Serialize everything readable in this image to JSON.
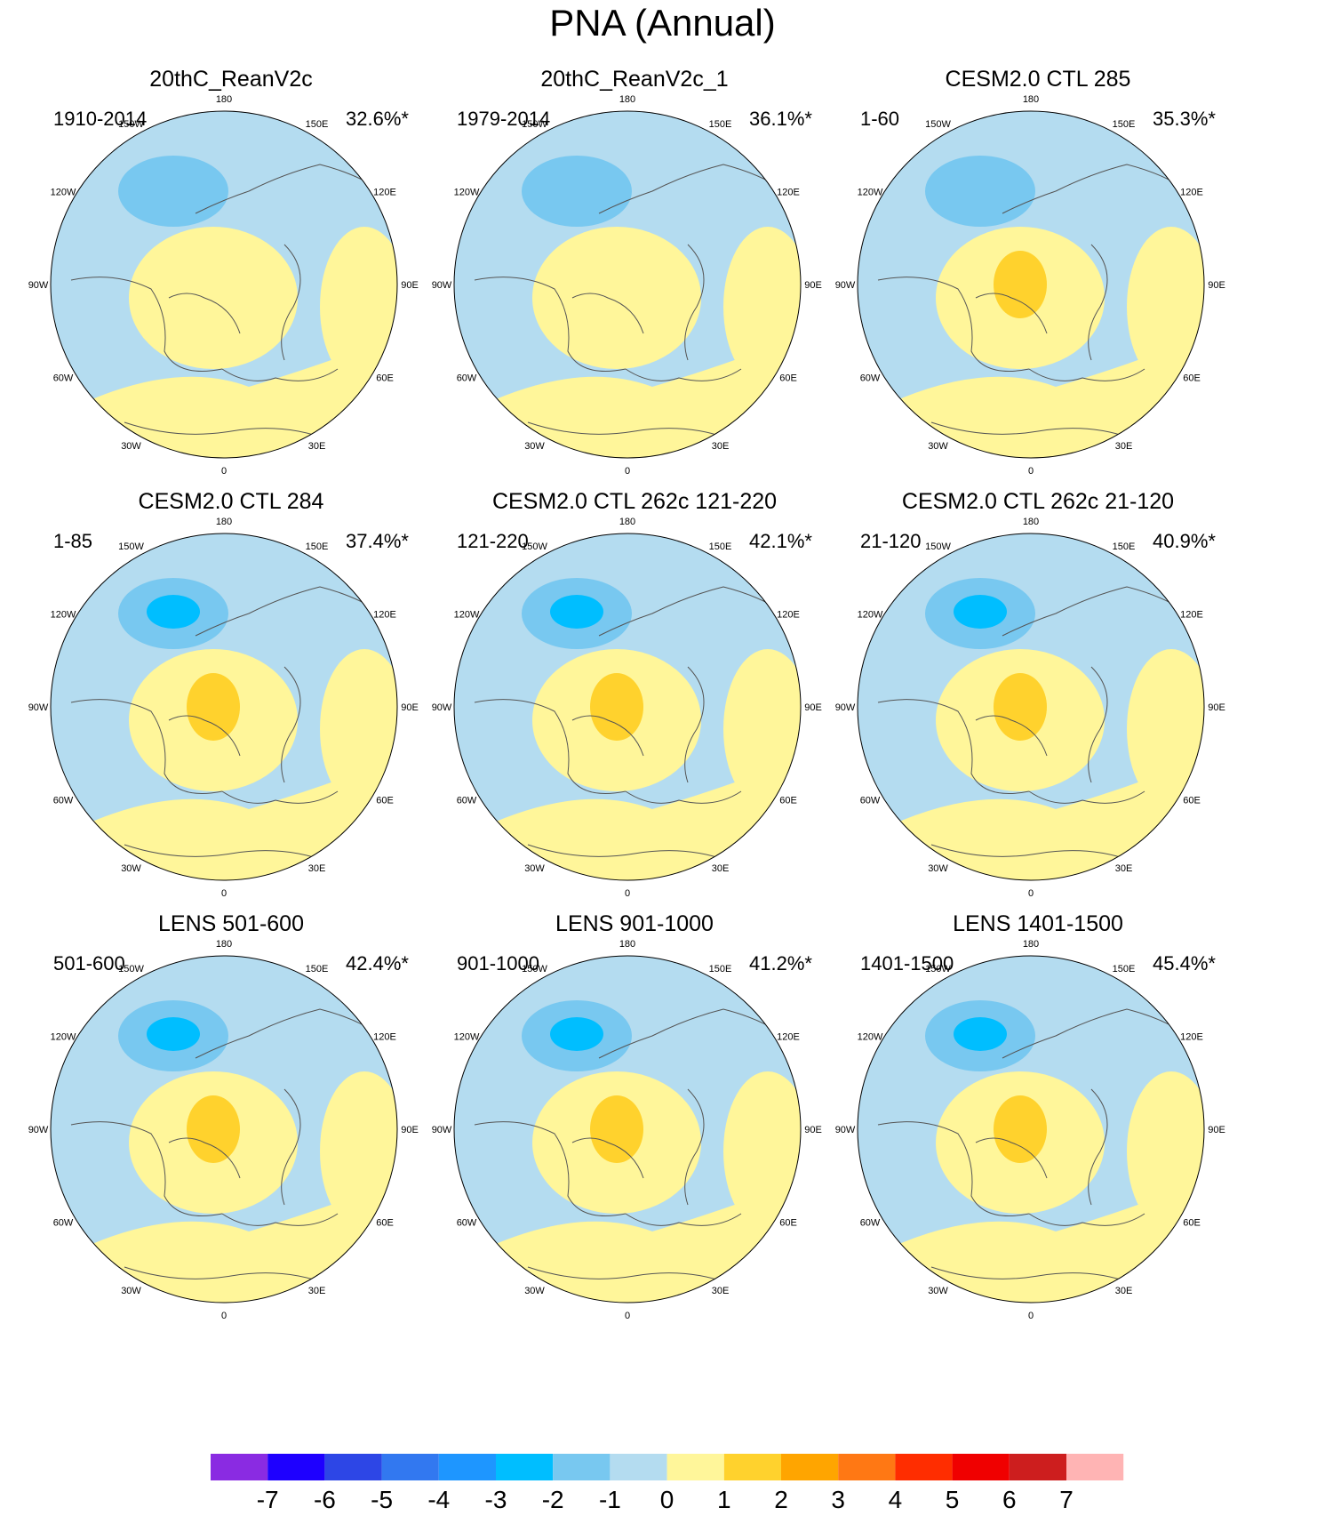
{
  "title": "PNA (Annual)",
  "colors": {
    "land_outline": "#555555",
    "neg_1": "#b4dcf0",
    "neg_2": "#78c8f0",
    "neg_3": "#00beff",
    "pos_1": "#fff69a",
    "pos_2": "#ffd22d"
  },
  "lon_labels": [
    "180",
    "150E",
    "120E",
    "90E",
    "60E",
    "30E",
    "0",
    "30W",
    "60W",
    "90W",
    "120W",
    "150W"
  ],
  "panels": [
    {
      "title": "20thC_ReanV2c",
      "years": "1910-2014",
      "pct": "32.6%*",
      "center_neg": "-2",
      "arctic_pos": "1"
    },
    {
      "title": "20thC_ReanV2c_1",
      "years": "1979-2014",
      "pct": "36.1%*",
      "center_neg": "-2",
      "arctic_pos": "1"
    },
    {
      "title": "CESM2.0 CTL 285",
      "years": "1-60",
      "pct": "35.3%*",
      "center_neg": "-2",
      "arctic_pos": "2"
    },
    {
      "title": "CESM2.0 CTL 284",
      "years": "1-85",
      "pct": "37.4%*",
      "center_neg": "-3",
      "arctic_pos": "2"
    },
    {
      "title": "CESM2.0 CTL 262c 121-220",
      "years": "121-220",
      "pct": "42.1%*",
      "center_neg": "-3",
      "arctic_pos": "2"
    },
    {
      "title": "CESM2.0 CTL 262c 21-120",
      "years": "21-120",
      "pct": "40.9%*",
      "center_neg": "-3",
      "arctic_pos": "2"
    },
    {
      "title": "LENS 501-600",
      "years": "501-600",
      "pct": "42.4%*",
      "center_neg": "-3",
      "arctic_pos": "2"
    },
    {
      "title": "LENS 901-1000",
      "years": "901-1000",
      "pct": "41.2%*",
      "center_neg": "-3",
      "arctic_pos": "2"
    },
    {
      "title": "LENS 1401-1500",
      "years": "1401-1500",
      "pct": "45.4%*",
      "center_neg": "-3",
      "arctic_pos": "2"
    }
  ],
  "colorbar": {
    "levels": [
      "-7",
      "-6",
      "-5",
      "-4",
      "-3",
      "-2",
      "-1",
      "0",
      "1",
      "2",
      "3",
      "4",
      "5",
      "6",
      "7"
    ],
    "colors": [
      "#8a2be2",
      "#1e00ff",
      "#2d46e6",
      "#3278f0",
      "#1e96ff",
      "#00beff",
      "#78c8f0",
      "#b4dcf0",
      "#fff69a",
      "#ffd22d",
      "#ffa500",
      "#ff7814",
      "#ff2d00",
      "#f00000",
      "#cd1e1e",
      "#ffb4b4"
    ]
  }
}
